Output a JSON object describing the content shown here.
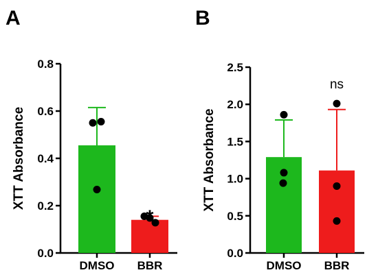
{
  "chart_data": [
    {
      "type": "bar",
      "panel_label": "A",
      "categories": [
        "DMSO",
        "BBR"
      ],
      "values": [
        0.455,
        0.14
      ],
      "errors": [
        0.16,
        0.015
      ],
      "points": [
        [
          0.555,
          0.55,
          0.268
        ],
        [
          0.155,
          0.148,
          0.128
        ]
      ],
      "colors": [
        "#1db81d",
        "#ee1c1c"
      ],
      "ylabel": "XTT Absorbance",
      "ylim": [
        0.0,
        0.8
      ],
      "yticks": [
        0.0,
        0.2,
        0.4,
        0.6,
        0.8
      ],
      "ytick_labels": [
        "0.0",
        "0.2",
        "0.4",
        "0.6",
        "0.8"
      ],
      "annotations": [
        {
          "category": "BBR",
          "text": "*"
        }
      ]
    },
    {
      "type": "bar",
      "panel_label": "B",
      "categories": [
        "DMSO",
        "BBR"
      ],
      "values": [
        1.29,
        1.11
      ],
      "errors": [
        0.5,
        0.82
      ],
      "points": [
        [
          1.86,
          1.08,
          0.94
        ],
        [
          2.01,
          0.9,
          0.43
        ]
      ],
      "colors": [
        "#1db81d",
        "#ee1c1c"
      ],
      "ylabel": "XTT Absorbance",
      "ylim": [
        0.0,
        2.5
      ],
      "yticks": [
        0.0,
        0.5,
        1.0,
        1.5,
        2.0,
        2.5
      ],
      "ytick_labels": [
        "0.0",
        "0.5",
        "1.0",
        "1.5",
        "2.0",
        "2.5"
      ],
      "annotations": [
        {
          "category": "BBR",
          "text": "ns"
        }
      ]
    }
  ]
}
